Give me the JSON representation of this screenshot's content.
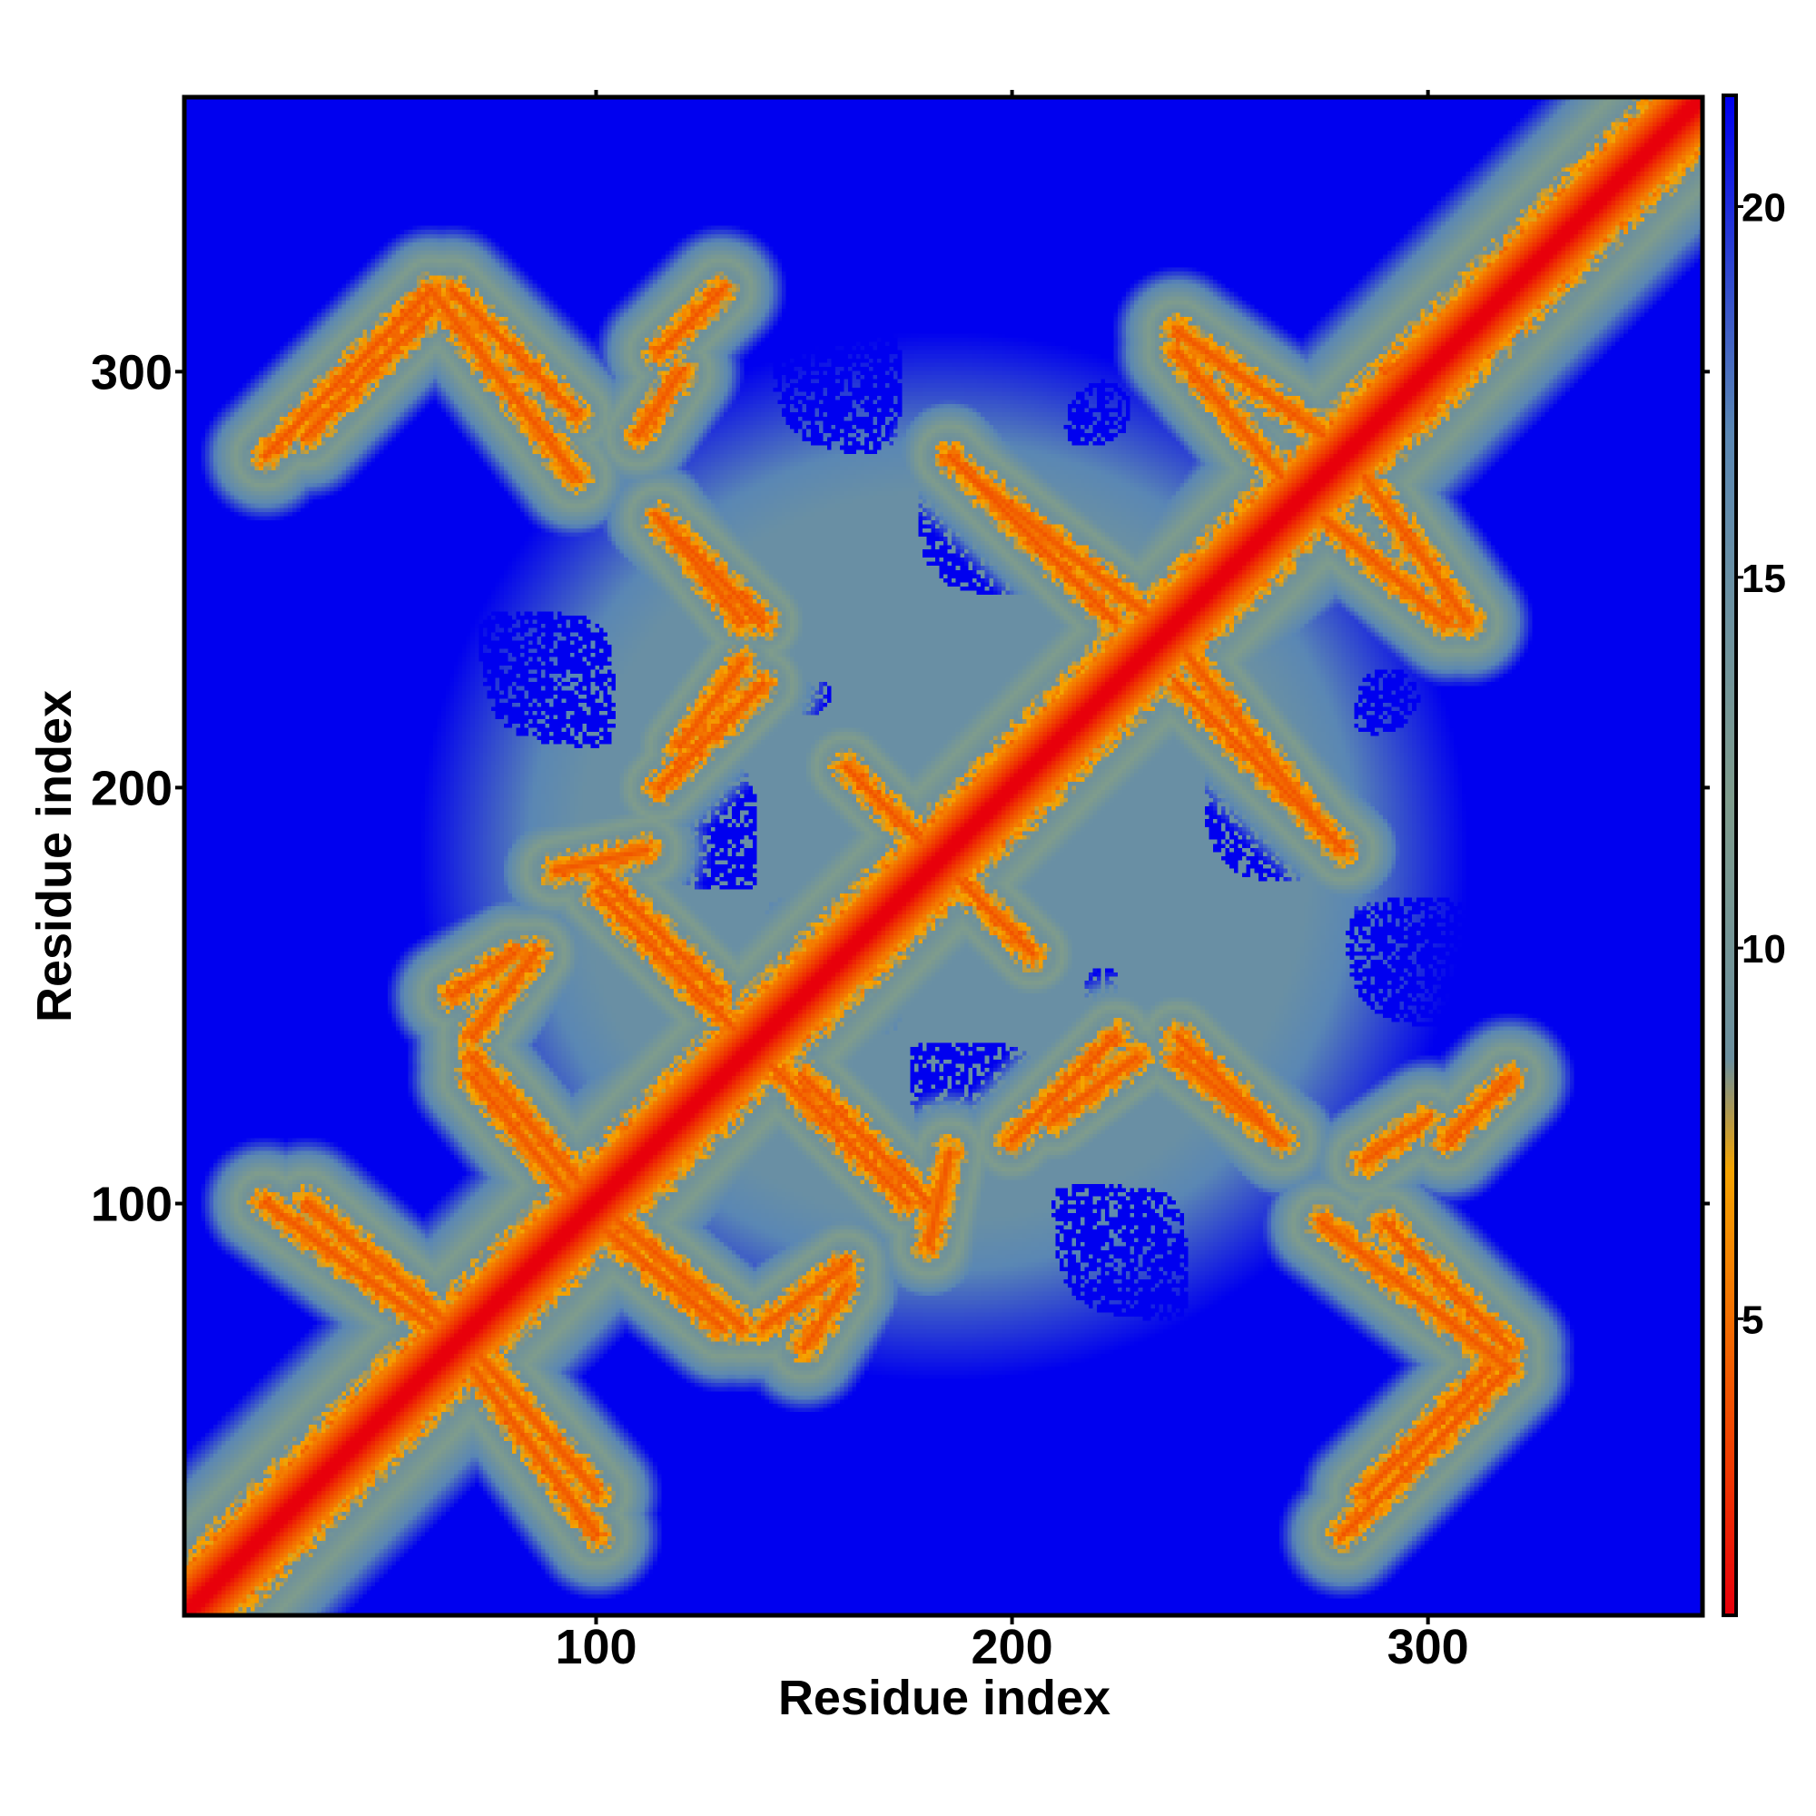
{
  "chart_data": {
    "type": "heatmap",
    "xlabel": "Residue index",
    "ylabel": "Residue index",
    "xlim": [
      1,
      366
    ],
    "ylim": [
      1,
      366
    ],
    "x_ticks": [
      100,
      200,
      300
    ],
    "y_ticks": [
      100,
      200,
      300
    ],
    "colorbar": {
      "ticks": [
        5,
        10,
        15,
        20
      ],
      "range": [
        1,
        21.5
      ],
      "stops": [
        {
          "value": 1,
          "color": "#e8000b"
        },
        {
          "value": 3,
          "color": "#f03a00"
        },
        {
          "value": 5,
          "color": "#f36f00"
        },
        {
          "value": 7,
          "color": "#f5a400"
        },
        {
          "value": 8.5,
          "color": "#6b8f9e"
        },
        {
          "value": 12,
          "color": "#7f9c8c"
        },
        {
          "value": 17,
          "color": "#5a87b4"
        },
        {
          "value": 21.5,
          "color": "#0000ef"
        }
      ]
    },
    "description_values": {
      "diagonal_distance": 0,
      "background_distance": 21,
      "contact_bands": [
        {
          "x_start": 20,
          "y_start": 280,
          "x_end": 60,
          "y_end": 320
        },
        {
          "x_start": 60,
          "y_start": 320,
          "x_end": 95,
          "y_end": 275
        },
        {
          "x_start": 115,
          "y_start": 305,
          "x_end": 130,
          "y_end": 320
        },
        {
          "x_start": 120,
          "y_start": 260,
          "x_end": 140,
          "y_end": 240
        },
        {
          "x_start": 115,
          "y_start": 200,
          "x_end": 140,
          "y_end": 225
        },
        {
          "x_start": 90,
          "y_start": 180,
          "x_end": 112,
          "y_end": 185
        },
        {
          "x_start": 100,
          "y_start": 175,
          "x_end": 135,
          "y_end": 140
        },
        {
          "x_start": 65,
          "y_start": 150,
          "x_end": 80,
          "y_end": 160
        },
        {
          "x_start": 70,
          "y_start": 135,
          "x_end": 100,
          "y_end": 100
        },
        {
          "x_start": 20,
          "y_start": 100,
          "x_end": 60,
          "y_end": 70
        },
        {
          "x_start": 70,
          "y_start": 65,
          "x_end": 100,
          "y_end": 30
        },
        {
          "x_start": 100,
          "y_start": 95,
          "x_end": 130,
          "y_end": 70
        },
        {
          "x_start": 140,
          "y_start": 70,
          "x_end": 160,
          "y_end": 85
        },
        {
          "x_start": 150,
          "y_start": 130,
          "x_end": 180,
          "y_end": 100
        },
        {
          "x_start": 160,
          "y_start": 205,
          "x_end": 195,
          "y_end": 170
        },
        {
          "x_start": 185,
          "y_start": 280,
          "x_end": 225,
          "y_end": 240
        },
        {
          "x_start": 210,
          "y_start": 120,
          "x_end": 230,
          "y_end": 135
        },
        {
          "x_start": 240,
          "y_start": 135,
          "x_end": 265,
          "y_end": 115
        },
        {
          "x_start": 240,
          "y_start": 235,
          "x_end": 275,
          "y_end": 190
        },
        {
          "x_start": 240,
          "y_start": 310,
          "x_end": 275,
          "y_end": 285
        },
        {
          "x_start": 275,
          "y_start": 265,
          "x_end": 305,
          "y_end": 240
        },
        {
          "x_start": 290,
          "y_start": 300,
          "x_end": 320,
          "y_end": 320
        },
        {
          "x_start": 285,
          "y_start": 110,
          "x_end": 300,
          "y_end": 120
        },
        {
          "x_start": 285,
          "y_start": 30,
          "x_end": 315,
          "y_end": 60
        },
        {
          "x_start": 290,
          "y_start": 95,
          "x_end": 320,
          "y_end": 65
        }
      ]
    }
  }
}
